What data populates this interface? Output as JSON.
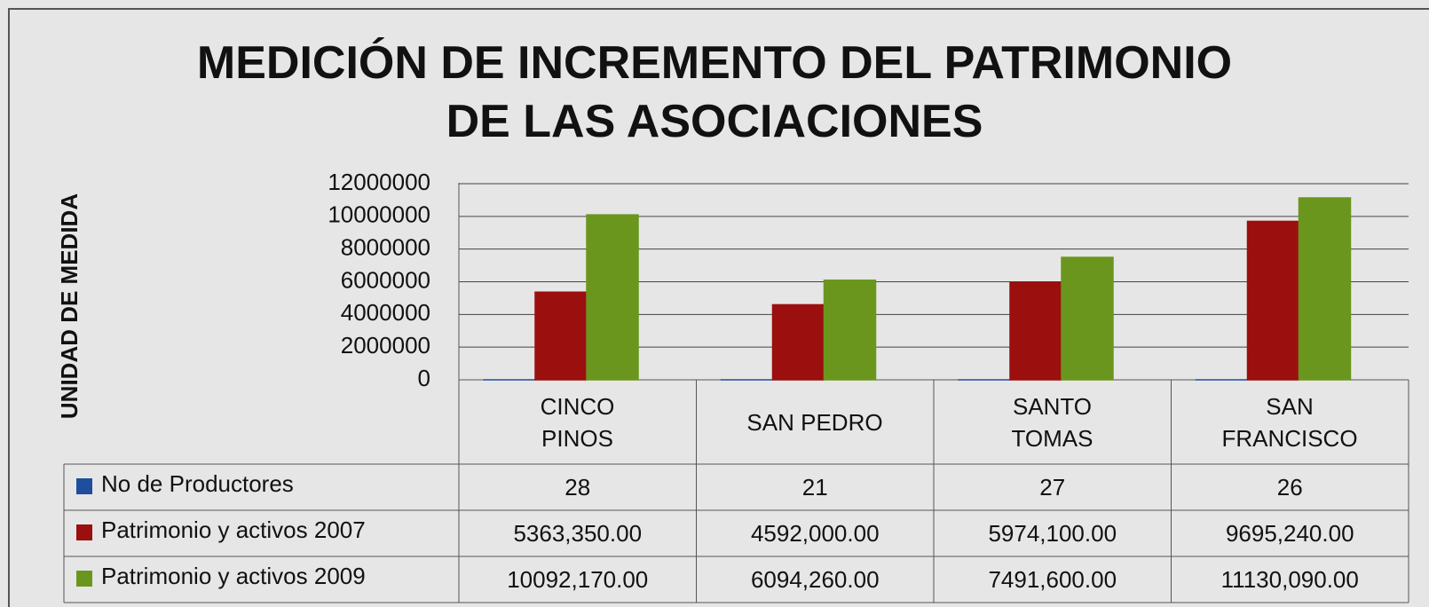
{
  "chart_data": {
    "type": "bar",
    "title": "MEDICIÓN DE INCREMENTO DEL PATRIMONIO\nDE LAS ASOCIACIONES",
    "ylabel": "UNIDAD DE  MEDIDA",
    "categories": [
      "CINCO\nPINOS",
      "SAN PEDRO",
      "SANTO\nTOMAS",
      "SAN\nFRANCISCO"
    ],
    "series": [
      {
        "name": "No de Productores",
        "color": "#1f4e9c",
        "values": [
          28,
          21,
          27,
          26
        ]
      },
      {
        "name": "Patrimonio y activos  2007",
        "color": "#9b0f0f",
        "values": [
          5363350,
          4592000,
          5974100,
          9695240
        ],
        "value_labels": [
          "5363,350.00",
          "4592,000.00",
          "5974,100.00",
          "9695,240.00"
        ]
      },
      {
        "name": "Patrimonio y activos  2009",
        "color": "#6b961e",
        "values": [
          10092170,
          6094260,
          7491600,
          11130090
        ],
        "value_labels": [
          "10092,170.00",
          "6094,260.00",
          "7491,600.00",
          "11130,090.00"
        ]
      }
    ],
    "ylim": [
      0,
      12000000
    ],
    "yticks": [
      0,
      2000000,
      4000000,
      6000000,
      8000000,
      10000000,
      12000000
    ],
    "grid": true,
    "legend": "table"
  }
}
